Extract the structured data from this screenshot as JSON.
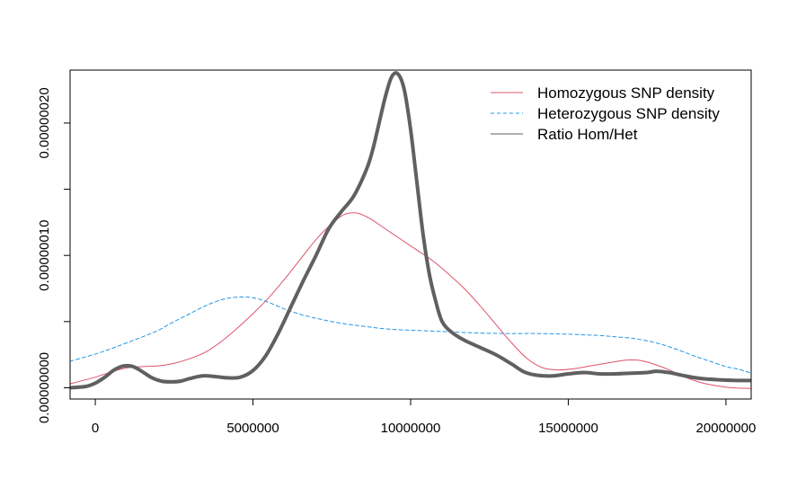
{
  "chart_data": {
    "type": "line",
    "title": "",
    "xlabel": "",
    "ylabel": "",
    "xlim": [
      -800000,
      20800000
    ],
    "ylim": [
      -8.5e-09,
      2.4e-07
    ],
    "x_ticks": [
      0,
      5000000,
      10000000,
      15000000,
      20000000
    ],
    "x_tick_labels": [
      "0",
      "5000000",
      "10000000",
      "15000000",
      "20000000"
    ],
    "y_ticks": [
      0,
      1e-07,
      2e-07
    ],
    "y_tick_labels": [
      "0.00000000",
      "0.00000010",
      "0.00000020"
    ],
    "y_minor_ticks": [
      5e-08,
      1.5e-07
    ],
    "grid": false,
    "legend_position": "top-right",
    "series": [
      {
        "name": "Homozygous SNP density",
        "color": "#DF536B",
        "line_style": "solid",
        "line_width": 1,
        "x": [
          -800000,
          0,
          500000,
          1000000,
          1500000,
          2000000,
          2500000,
          3000000,
          3500000,
          4000000,
          4500000,
          5000000,
          5500000,
          6000000,
          6500000,
          7000000,
          7500000,
          7900000,
          8300000,
          8700000,
          9200000,
          9700000,
          10200000,
          10700000,
          11200000,
          11700000,
          12200000,
          12700000,
          13200000,
          13700000,
          14200000,
          14700000,
          15200000,
          15700000,
          16200000,
          16700000,
          17000000,
          17300000,
          17700000,
          18200000,
          18700000,
          19200000,
          19700000,
          20200000,
          20800000
        ],
        "y": [
          3e-09,
          8e-09,
          1.2e-08,
          1.5e-08,
          1.6e-08,
          1.65e-08,
          1.85e-08,
          2.2e-08,
          2.7e-08,
          3.5e-08,
          4.5e-08,
          5.6e-08,
          6.8e-08,
          8.2e-08,
          9.7e-08,
          1.12e-07,
          1.24e-07,
          1.31e-07,
          1.32e-07,
          1.28e-07,
          1.2e-07,
          1.12e-07,
          1.04e-07,
          9.6e-08,
          8.6e-08,
          7.5e-08,
          6.2e-08,
          4.8e-08,
          3.4e-08,
          2.2e-08,
          1.5e-08,
          1.35e-08,
          1.45e-08,
          1.65e-08,
          1.85e-08,
          2.05e-08,
          2.1e-08,
          2.05e-08,
          1.8e-08,
          1.35e-08,
          8e-09,
          4e-09,
          1.5e-09,
          0,
          -5e-10
        ]
      },
      {
        "name": "Heterozygous SNP density",
        "color": "#2297E6",
        "line_style": "dashed",
        "line_width": 1,
        "x": [
          -800000,
          0,
          500000,
          1000000,
          1500000,
          2000000,
          2500000,
          3000000,
          3500000,
          4000000,
          4500000,
          5000000,
          5500000,
          6000000,
          6500000,
          7000000,
          7500000,
          8000000,
          8500000,
          9000000,
          9500000,
          10000000,
          11000000,
          12000000,
          13000000,
          14000000,
          15000000,
          15500000,
          16000000,
          16500000,
          17000000,
          17500000,
          18000000,
          18500000,
          19000000,
          19500000,
          20000000,
          20400000,
          20800000
        ],
        "y": [
          2e-08,
          2.55e-08,
          2.95e-08,
          3.4e-08,
          3.85e-08,
          4.35e-08,
          5e-08,
          5.6e-08,
          6.2e-08,
          6.65e-08,
          6.85e-08,
          6.8e-08,
          6.45e-08,
          5.95e-08,
          5.55e-08,
          5.25e-08,
          5e-08,
          4.8e-08,
          4.65e-08,
          4.5e-08,
          4.4e-08,
          4.35e-08,
          4.25e-08,
          4.15e-08,
          4.1e-08,
          4.1e-08,
          4.05e-08,
          4e-08,
          3.95e-08,
          3.85e-08,
          3.75e-08,
          3.55e-08,
          3.25e-08,
          2.85e-08,
          2.4e-08,
          2e-08,
          1.6e-08,
          1.4e-08,
          1.1e-08
        ]
      },
      {
        "name": "Ratio Hom/Het",
        "color": "#606060",
        "line_style": "solid",
        "line_width": 4,
        "x": [
          -800000,
          -300000,
          0,
          300000,
          600000,
          900000,
          1200000,
          1500000,
          1800000,
          2100000,
          2400000,
          2700000,
          3000000,
          3400000,
          3800000,
          4200000,
          4600000,
          5000000,
          5400000,
          5800000,
          6200000,
          6600000,
          7000000,
          7400000,
          7800000,
          8200000,
          8600000,
          8800000,
          9000000,
          9200000,
          9400000,
          9600000,
          9800000,
          10000000,
          10200000,
          10400000,
          10600000,
          10800000,
          11000000,
          11300000,
          11700000,
          12200000,
          12700000,
          13200000,
          13600000,
          14000000,
          14500000,
          15000000,
          15500000,
          16000000,
          16500000,
          17000000,
          17500000,
          17800000,
          18200000,
          18700000,
          19200000,
          19800000,
          20400000,
          20800000
        ],
        "y": [
          0,
          1e-09,
          3.5e-09,
          8e-09,
          1.35e-08,
          1.65e-08,
          1.6e-08,
          1.2e-08,
          7.5e-09,
          5e-09,
          4.5e-09,
          5e-09,
          7e-09,
          9e-09,
          8.5e-09,
          7.5e-09,
          8e-09,
          1.3e-08,
          2.4e-08,
          4.1e-08,
          6.1e-08,
          8.1e-08,
          1e-07,
          1.2e-07,
          1.33e-07,
          1.45e-07,
          1.65e-07,
          1.8e-07,
          2e-07,
          2.2e-07,
          2.35e-07,
          2.37e-07,
          2.25e-07,
          1.95e-07,
          1.55e-07,
          1.15e-07,
          8.5e-08,
          6.5e-08,
          5e-08,
          4.2e-08,
          3.6e-08,
          3.05e-08,
          2.5e-08,
          1.8e-08,
          1.2e-08,
          9.5e-09,
          9e-09,
          1.05e-08,
          1.15e-08,
          1.05e-08,
          1.05e-08,
          1.1e-08,
          1.15e-08,
          1.25e-08,
          1.15e-08,
          9e-09,
          7e-09,
          6e-09,
          5.5e-09,
          5.5e-09
        ]
      }
    ]
  }
}
